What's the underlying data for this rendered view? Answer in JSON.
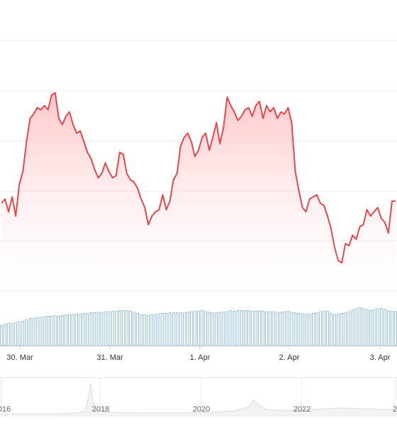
{
  "chart_data": {
    "type": "line",
    "colors": {
      "line": "#e5484d",
      "area_top": "#ffb3b6",
      "volume": "#7fb2cf",
      "grid": "#e8e8e8",
      "navigator_fill": "#f3f3f3"
    },
    "x_tick_labels": [
      "30. Mar",
      "31. Mar",
      "1. Apr",
      "2. Apr",
      "3. Apr"
    ],
    "navigator_tick_labels": [
      "2016",
      "2018",
      "2020",
      "2022",
      "2"
    ],
    "grid": true,
    "series": [
      {
        "values": [
          41,
          43,
          37,
          44,
          35,
          50,
          56,
          70,
          81,
          83,
          86,
          85,
          87,
          85,
          92,
          93,
          81,
          78,
          82,
          84,
          78,
          74,
          75,
          70,
          65,
          62,
          57,
          53,
          55,
          60,
          56,
          53,
          54,
          65,
          64,
          55,
          52,
          51,
          48,
          43,
          39,
          31,
          35,
          37,
          38,
          45,
          38,
          42,
          52,
          55,
          68,
          72,
          74,
          70,
          63,
          66,
          72,
          74,
          66,
          72,
          79,
          69,
          77,
          91,
          87,
          84,
          80,
          82,
          85,
          86,
          82,
          87,
          89,
          81,
          87,
          84,
          86,
          81,
          84,
          83,
          86,
          79,
          56,
          47,
          39,
          37,
          43,
          44,
          45,
          41,
          40,
          35,
          29,
          20,
          14,
          13,
          22,
          21,
          26,
          24,
          30,
          31,
          38,
          35,
          37,
          39,
          34,
          32,
          27,
          42,
          42
        ]
      },
      {
        "type": "bar",
        "values": [
          36,
          38,
          40,
          39,
          41,
          42,
          43,
          46,
          48,
          48,
          50,
          50,
          51,
          52,
          52,
          53,
          52,
          53,
          54,
          55,
          55,
          56,
          56,
          57,
          57,
          58,
          58,
          59,
          59,
          60,
          60,
          61,
          61,
          62,
          62,
          62,
          61,
          59,
          57,
          55,
          54,
          53,
          55,
          55,
          56,
          57,
          57,
          58,
          58,
          58,
          58,
          58,
          59,
          60,
          61,
          61,
          62,
          60,
          59,
          58,
          58,
          59,
          59,
          60,
          62,
          61,
          62,
          62,
          62,
          62,
          61,
          61,
          61,
          61,
          60,
          60,
          60,
          59,
          59,
          60,
          61,
          59,
          58,
          57,
          56,
          55,
          56,
          57,
          58,
          60,
          61,
          61,
          57,
          55,
          56,
          57,
          58,
          60,
          63,
          65,
          67,
          66,
          64,
          62,
          64,
          65,
          66,
          64,
          62,
          61,
          60
        ]
      }
    ]
  }
}
